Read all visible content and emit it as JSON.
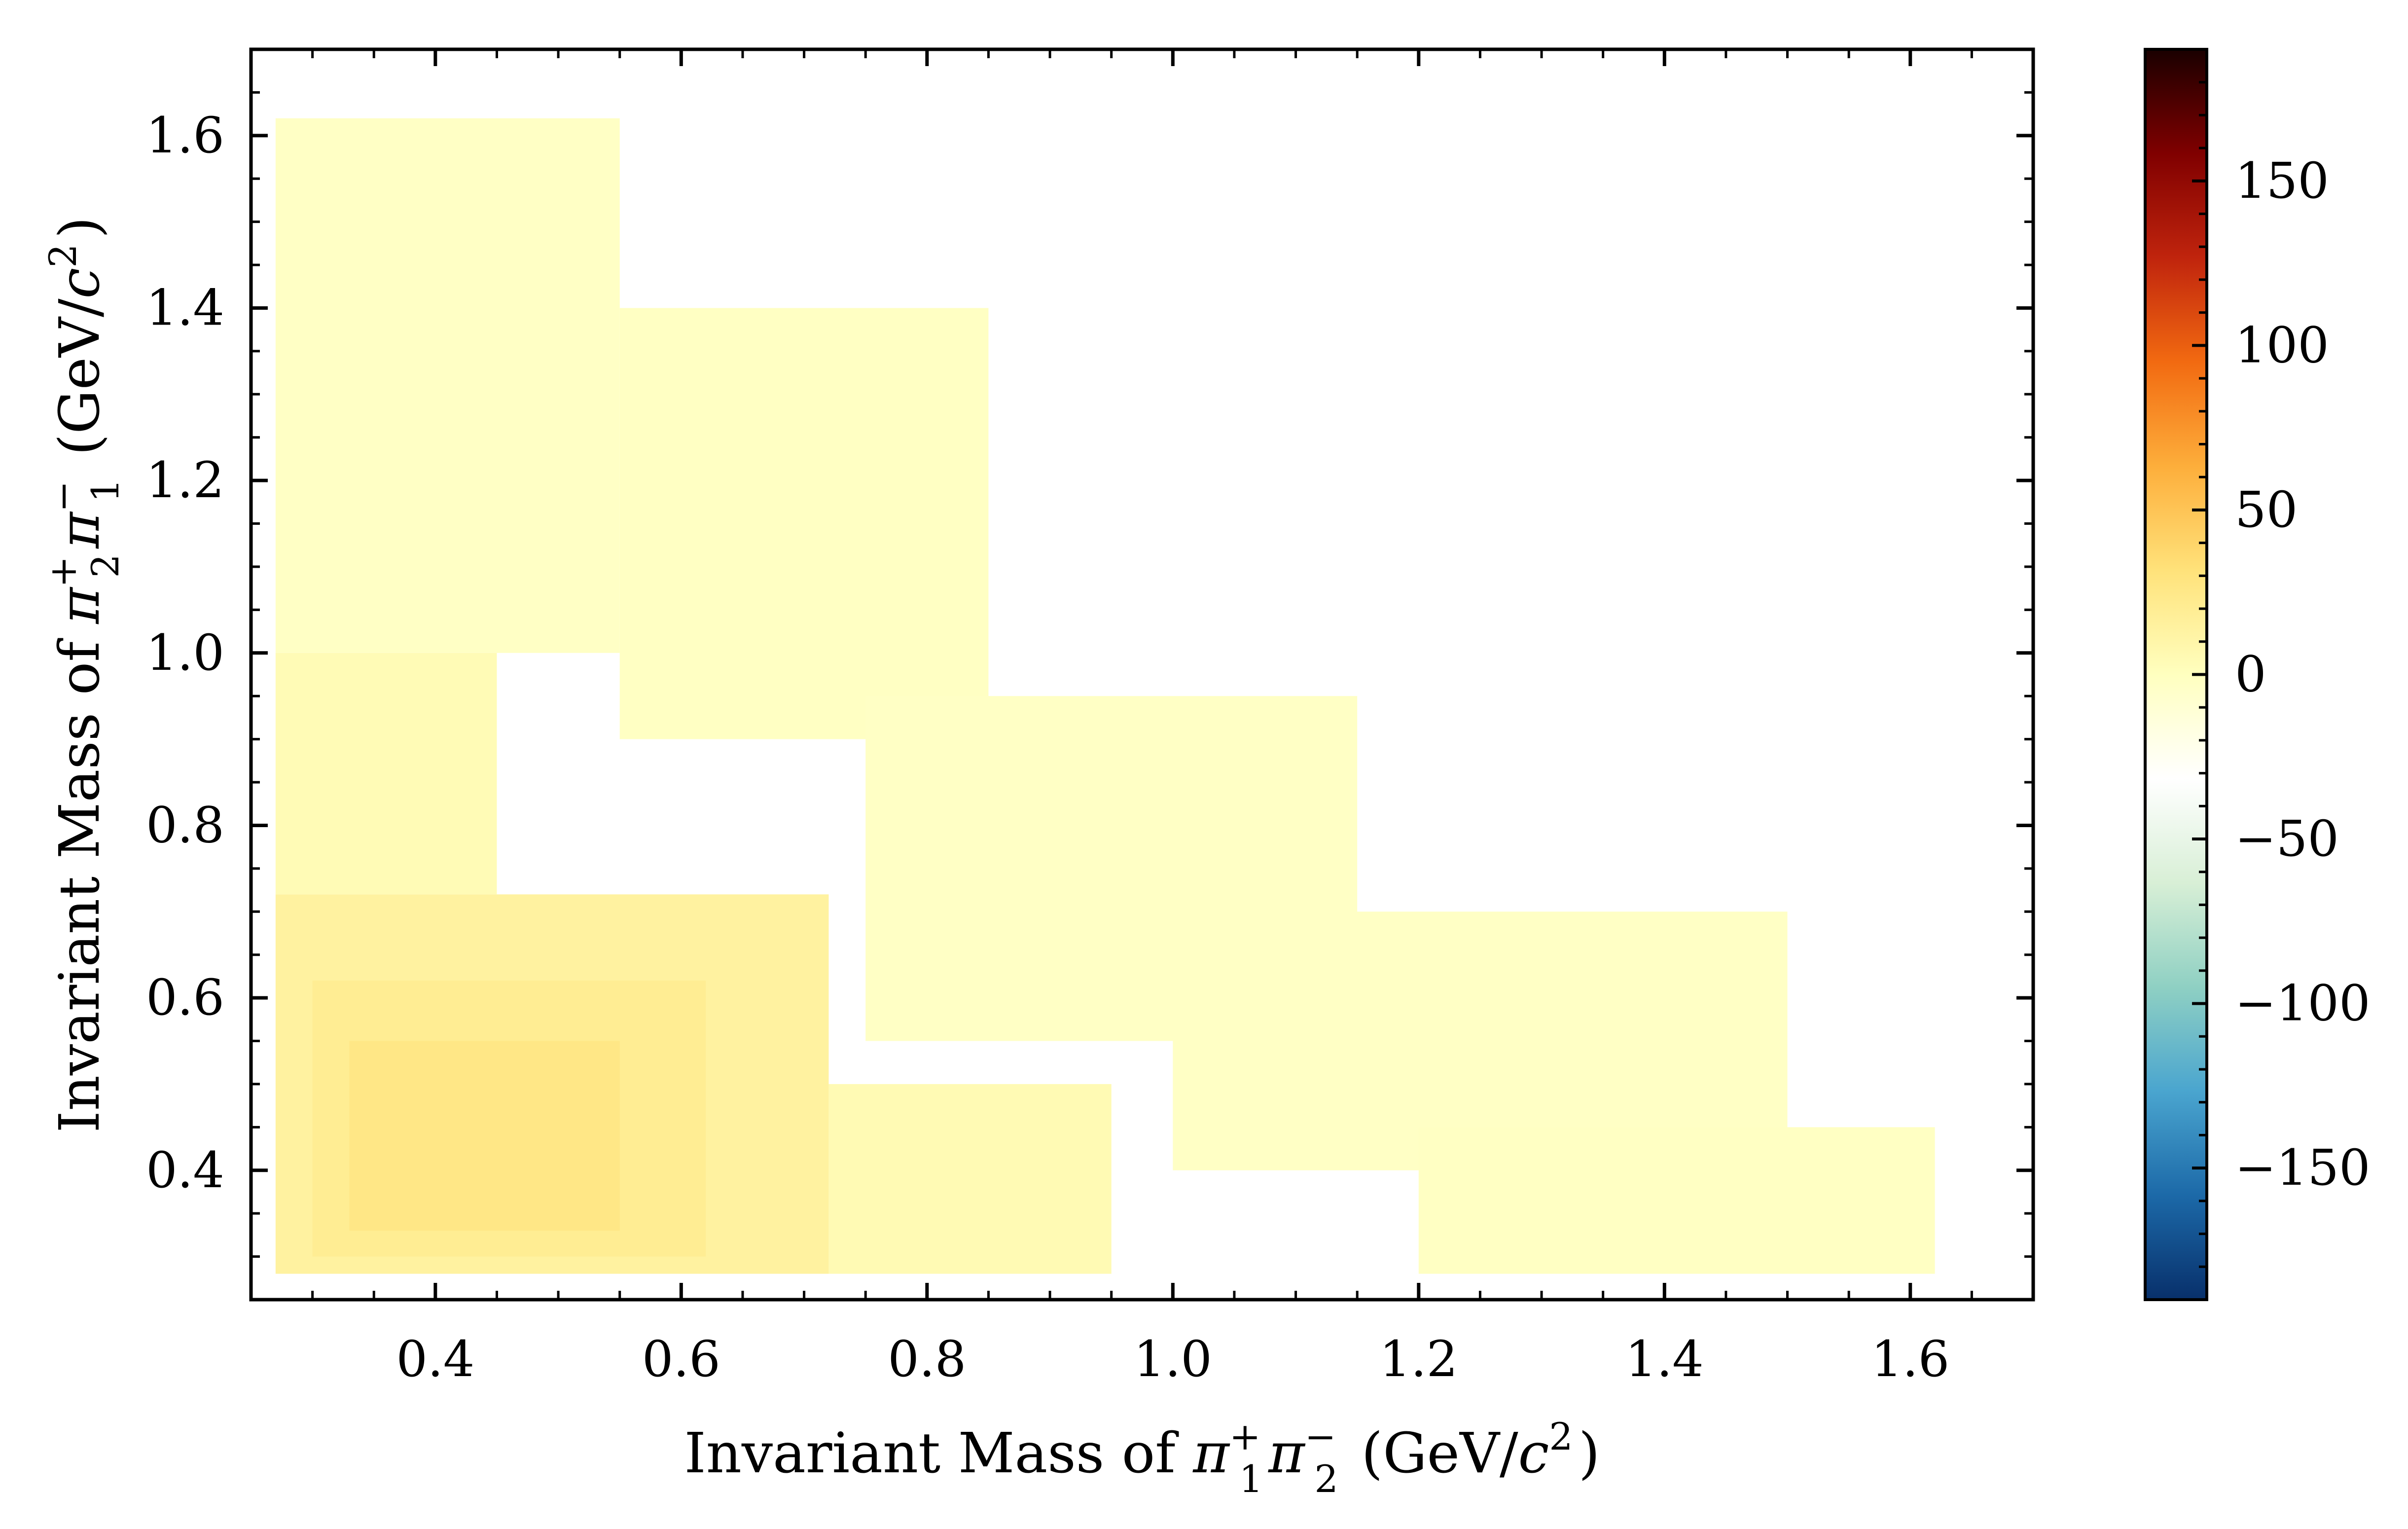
{
  "chart_data": {
    "type": "heatmap",
    "title": "",
    "xlabel": {
      "parts": [
        {
          "t": "Invariant Mass of "
        },
        {
          "t": "π",
          "style": "italic"
        },
        {
          "t": "1",
          "pos": "sub",
          "stack": "+"
        },
        {
          "t": "π",
          "style": "italic"
        },
        {
          "t": "2",
          "pos": "sub",
          "stack": "−"
        },
        {
          "t": " (GeV/"
        },
        {
          "t": "c",
          "style": "italic"
        },
        {
          "t": "2",
          "pos": "sup"
        },
        {
          "t": ")"
        }
      ]
    },
    "ylabel": {
      "parts": [
        {
          "t": "Invariant Mass of "
        },
        {
          "t": "π",
          "style": "italic"
        },
        {
          "t": "2",
          "pos": "sub",
          "stack": "+"
        },
        {
          "t": "π",
          "style": "italic"
        },
        {
          "t": "1",
          "pos": "sub",
          "stack": "−"
        },
        {
          "t": " (GeV/"
        },
        {
          "t": "c",
          "style": "italic"
        },
        {
          "t": "2",
          "pos": "sup"
        },
        {
          "t": ")"
        }
      ]
    },
    "xlim": [
      0.25,
      1.7
    ],
    "ylim": [
      0.25,
      1.7
    ],
    "x_ticks": [
      0.4,
      0.6,
      0.8,
      1.0,
      1.2,
      1.4,
      1.6
    ],
    "x_tick_labels": [
      "0.4",
      "0.6",
      "0.8",
      "1.0",
      "1.2",
      "1.4",
      "1.6"
    ],
    "y_ticks": [
      0.4,
      0.6,
      0.8,
      1.0,
      1.2,
      1.4,
      1.6
    ],
    "y_tick_labels": [
      "0.4",
      "0.6",
      "0.8",
      "1.0",
      "1.2",
      "1.4",
      "1.6"
    ],
    "x_minor_step": 0.05,
    "y_minor_step": 0.05,
    "grid": false,
    "colorbar": {
      "vmin": -190,
      "vmax": 190,
      "ticks": [
        -150,
        -100,
        -50,
        0,
        50,
        100,
        150
      ],
      "tick_labels": [
        "−150",
        "−100",
        "−50",
        "0",
        "50",
        "100",
        "150"
      ],
      "minor_step": 10,
      "colormap": [
        "#08306b",
        "#1c69a8",
        "#4aa5cf",
        "#8fd0c3",
        "#d8efd6",
        "#ffffff",
        "#ffffbf",
        "#ffe27a",
        "#fdae3b",
        "#f26a11",
        "#c0240d",
        "#800000",
        "#1a0000"
      ]
    },
    "bin_width": 0.0065,
    "bin_height": 0.0078,
    "cells": [
      {
        "x": [
          0.27,
          0.72
        ],
        "y": [
          0.28,
          0.72
        ],
        "value": 14
      },
      {
        "x": [
          0.3,
          0.62
        ],
        "y": [
          0.3,
          0.62
        ],
        "value": 20
      },
      {
        "x": [
          0.33,
          0.55
        ],
        "y": [
          0.33,
          0.55
        ],
        "value": 26
      },
      {
        "x": [
          0.72,
          0.95
        ],
        "y": [
          0.28,
          0.5
        ],
        "value": 5
      },
      {
        "x": [
          0.27,
          0.45
        ],
        "y": [
          0.72,
          1.0
        ],
        "value": 4
      },
      {
        "x": [
          0.27,
          0.55
        ],
        "y": [
          1.0,
          1.62
        ],
        "value": -3
      },
      {
        "x": [
          0.55,
          0.85
        ],
        "y": [
          0.9,
          1.4
        ],
        "value": -2
      },
      {
        "x": [
          0.75,
          1.15
        ],
        "y": [
          0.55,
          0.95
        ],
        "value": -3
      },
      {
        "x": [
          1.0,
          1.5
        ],
        "y": [
          0.4,
          0.7
        ],
        "value": -3
      },
      {
        "x": [
          1.2,
          1.62
        ],
        "y": [
          0.28,
          0.45
        ],
        "value": -2
      }
    ]
  }
}
